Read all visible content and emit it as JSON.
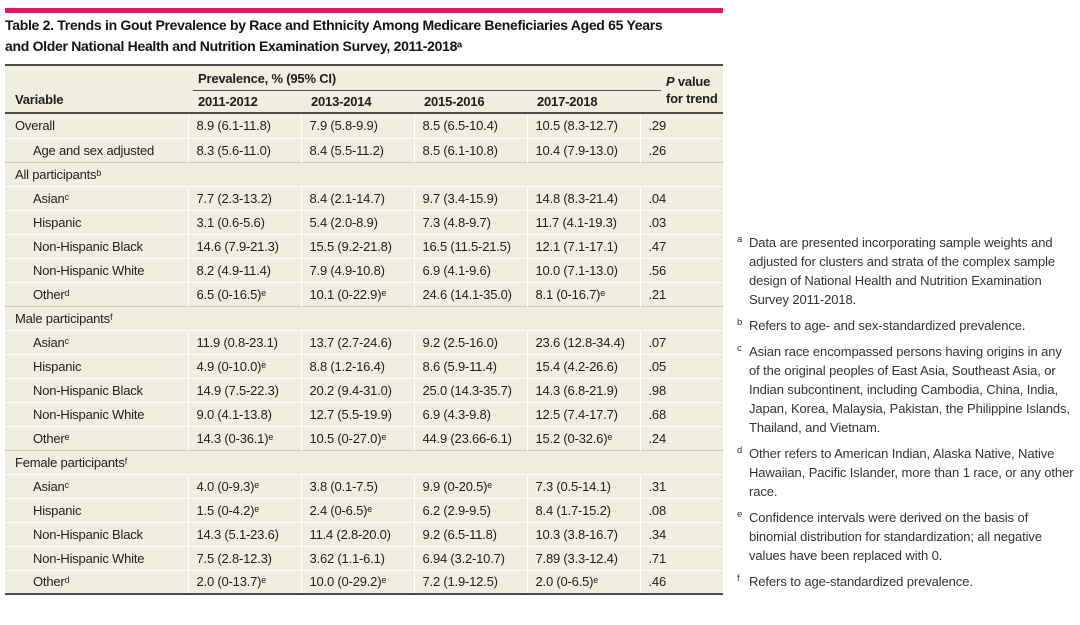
{
  "colors": {
    "accent": "#ec1066",
    "table_bg": "#f0ede1",
    "rule_dark": "#4c4c4c",
    "section_line": "#ccc9bc"
  },
  "title": {
    "line1": "Table 2. Trends in Gout Prevalence by Race and Ethnicity Among Medicare Beneficiaries Aged 65 Years",
    "line2": "and Older National Health and Nutrition Examination Survey, 2011-2018ᵃ"
  },
  "table": {
    "header": {
      "variable": "Variable",
      "prevalence_group": "Prevalence, % (95% CI)",
      "years": [
        "2011-2012",
        "2013-2014",
        "2015-2016",
        "2017-2018"
      ],
      "p_italic": "P",
      "p_rest": " value",
      "p_line2": "for trend"
    },
    "rows": [
      {
        "label": "Overall",
        "indent": false,
        "section": false,
        "values": [
          "8.9 (6.1-11.8)",
          "7.9 (5.8-9.9)",
          "8.5 (6.5-10.4)",
          "10.5 (8.3-12.7)"
        ],
        "p": ".29"
      },
      {
        "label": "Age and sex adjusted",
        "indent": true,
        "section": false,
        "values": [
          "8.3 (5.6-11.0)",
          "8.4 (5.5-11.2)",
          "8.5 (6.1-10.8)",
          "10.4 (7.9-13.0)"
        ],
        "p": ".26"
      },
      {
        "label": "All participantsᵇ",
        "indent": false,
        "section": true,
        "values": [],
        "p": ""
      },
      {
        "label": "Asianᶜ",
        "indent": true,
        "section": false,
        "values": [
          "7.7 (2.3-13.2)",
          "8.4 (2.1-14.7)",
          "9.7 (3.4-15.9)",
          "14.8 (8.3-21.4)"
        ],
        "p": ".04"
      },
      {
        "label": "Hispanic",
        "indent": true,
        "section": false,
        "values": [
          "3.1 (0.6-5.6)",
          "5.4 (2.0-8.9)",
          "7.3 (4.8-9.7)",
          "11.7 (4.1-19.3)"
        ],
        "p": ".03"
      },
      {
        "label": "Non-Hispanic Black",
        "indent": true,
        "section": false,
        "values": [
          "14.6 (7.9-21.3)",
          "15.5 (9.2-21.8)",
          "16.5 (11.5-21.5)",
          "12.1 (7.1-17.1)"
        ],
        "p": ".47"
      },
      {
        "label": "Non-Hispanic White",
        "indent": true,
        "section": false,
        "values": [
          "8.2 (4.9-11.4)",
          "7.9 (4.9-10.8)",
          "6.9 (4.1-9.6)",
          "10.0 (7.1-13.0)"
        ],
        "p": ".56"
      },
      {
        "label": "Otherᵈ",
        "indent": true,
        "section": false,
        "values": [
          "6.5 (0-16.5)ᵉ",
          "10.1 (0-22.9)ᵉ",
          "24.6 (14.1-35.0)",
          "8.1 (0-16.7)ᵉ"
        ],
        "p": ".21"
      },
      {
        "label": "Male participantsᶠ",
        "indent": false,
        "section": true,
        "values": [],
        "p": ""
      },
      {
        "label": "Asianᶜ",
        "indent": true,
        "section": false,
        "values": [
          "11.9 (0.8-23.1)",
          "13.7 (2.7-24.6)",
          "9.2 (2.5-16.0)",
          "23.6 (12.8-34.4)"
        ],
        "p": ".07"
      },
      {
        "label": "Hispanic",
        "indent": true,
        "section": false,
        "values": [
          "4.9 (0-10.0)ᵉ",
          "8.8 (1.2-16.4)",
          "8.6 (5.9-11.4)",
          "15.4 (4.2-26.6)"
        ],
        "p": ".05"
      },
      {
        "label": "Non-Hispanic Black",
        "indent": true,
        "section": false,
        "values": [
          "14.9 (7.5-22.3)",
          "20.2 (9.4-31.0)",
          "25.0 (14.3-35.7)",
          "14.3 (6.8-21.9)"
        ],
        "p": ".98"
      },
      {
        "label": "Non-Hispanic White",
        "indent": true,
        "section": false,
        "values": [
          "9.0 (4.1-13.8)",
          "12.7 (5.5-19.9)",
          "6.9 (4.3-9.8)",
          "12.5 (7.4-17.7)"
        ],
        "p": ".68"
      },
      {
        "label": "Otherᵉ",
        "indent": true,
        "section": false,
        "values": [
          "14.3 (0-36.1)ᵉ",
          "10.5 (0-27.0)ᵉ",
          "44.9 (23.66-6.1)",
          "15.2 (0-32.6)ᵉ"
        ],
        "p": ".24"
      },
      {
        "label": "Female participantsᶠ",
        "indent": false,
        "section": true,
        "values": [],
        "p": ""
      },
      {
        "label": "Asianᶜ",
        "indent": true,
        "section": false,
        "values": [
          "4.0 (0-9.3)ᵉ",
          "3.8 (0.1-7.5)",
          "9.9 (0-20.5)ᵉ",
          "7.3 (0.5-14.1)"
        ],
        "p": ".31"
      },
      {
        "label": "Hispanic",
        "indent": true,
        "section": false,
        "values": [
          "1.5 (0-4.2)ᵉ",
          "2.4 (0-6.5)ᵉ",
          "6.2 (2.9-9.5)",
          "8.4 (1.7-15.2)"
        ],
        "p": ".08"
      },
      {
        "label": "Non-Hispanic Black",
        "indent": true,
        "section": false,
        "values": [
          "14.3 (5.1-23.6)",
          "11.4 (2.8-20.0)",
          "9.2 (6.5-11.8)",
          "10.3 (3.8-16.7)"
        ],
        "p": ".34"
      },
      {
        "label": "Non-Hispanic White",
        "indent": true,
        "section": false,
        "values": [
          "7.5 (2.8-12.3)",
          "3.62 (1.1-6.1)",
          "6.94 (3.2-10.7)",
          "7.89 (3.3-12.4)"
        ],
        "p": ".71"
      },
      {
        "label": "Otherᵈ",
        "indent": true,
        "section": false,
        "values": [
          "2.0 (0-13.7)ᵉ",
          "10.0 (0-29.2)ᵉ",
          "7.2 (1.9-12.5)",
          "2.0 (0-6.5)ᵉ"
        ],
        "p": ".46"
      }
    ]
  },
  "footnotes": [
    {
      "marker": "a",
      "text": "Data are presented incorporating sample weights and adjusted for clusters and strata of the complex sample design of National Health and Nutrition Examination Survey 2011-2018."
    },
    {
      "marker": "b",
      "text": "Refers to age- and sex-standardized prevalence."
    },
    {
      "marker": "c",
      "text": "Asian race encompassed persons having origins in any of the original peoples of East Asia, Southeast Asia, or Indian subcontinent, including Cambodia, China, India, Japan, Korea, Malaysia, Pakistan, the Philippine Islands, Thailand, and Vietnam."
    },
    {
      "marker": "d",
      "text": "Other refers to American Indian, Alaska Native, Native Hawaiian, Pacific Islander, more than 1 race, or any other race."
    },
    {
      "marker": "e",
      "text": "Confidence intervals were derived on the basis of binomial distribution for standardization; all negative values have been replaced with 0."
    },
    {
      "marker": "f",
      "text": "Refers to age-standardized prevalence."
    }
  ]
}
